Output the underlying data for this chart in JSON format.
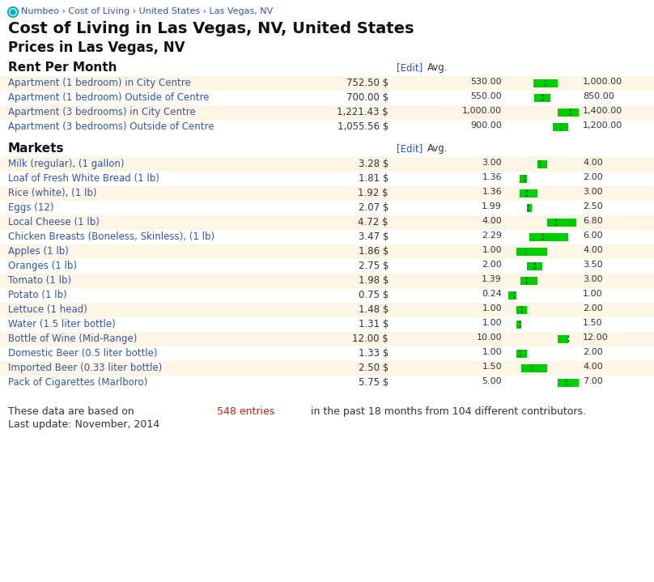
{
  "breadcrumb": "Numbeo › Cost of Living › United States › Las Vegas, NV",
  "title1": "Cost of Living in Las Vegas, NV, United States",
  "title2": "Prices in Las Vegas, NV",
  "bg_color": "#ffffff",
  "row_alt_color": "#fdf5e6",
  "row_white_color": "#ffffff",
  "text_color_blue": "#3355aa",
  "text_color_red": "#cc2200",
  "text_color_black": "#111111",
  "text_color_dark": "#333333",
  "bar_color": "#00cc00",
  "bar_dashed_color": "#005500",
  "edit_color": "#3355aa",
  "sections": [
    {
      "header": "Rent Per Month",
      "items": [
        {
          "name": "Apartment (1 bedroom) in City Centre",
          "avg": "752.50 $",
          "low": 530,
          "high": 1000,
          "low_str": "530.00",
          "high_str": "1,000.00",
          "bar_scale_max": 1400
        },
        {
          "name": "Apartment (1 bedroom) Outside of Centre",
          "avg": "700.00 $",
          "low": 550,
          "high": 850,
          "low_str": "550.00",
          "high_str": "850.00",
          "bar_scale_max": 1400
        },
        {
          "name": "Apartment (3 bedrooms) in City Centre",
          "avg": "1,221.43 $",
          "low": 1000,
          "high": 1400,
          "low_str": "1,000.00",
          "high_str": "1,400.00",
          "bar_scale_max": 1400
        },
        {
          "name": "Apartment (3 bedrooms) Outside of Centre",
          "avg": "1,055.56 $",
          "low": 900,
          "high": 1200,
          "low_str": "900.00",
          "high_str": "1,200.00",
          "bar_scale_max": 1400
        }
      ]
    },
    {
      "header": "Markets",
      "items": [
        {
          "name": "Milk (regular), (1 gallon)",
          "avg": "3.28 $",
          "low": 3.0,
          "high": 4.0,
          "low_str": "3.00",
          "high_str": "4.00",
          "bar_scale_max": 7
        },
        {
          "name": "Loaf of Fresh White Bread (1 lb)",
          "avg": "1.81 $",
          "low": 1.36,
          "high": 2.0,
          "low_str": "1.36",
          "high_str": "2.00",
          "bar_scale_max": 7
        },
        {
          "name": "Rice (white), (1 lb)",
          "avg": "1.92 $",
          "low": 1.36,
          "high": 3.0,
          "low_str": "1.36",
          "high_str": "3.00",
          "bar_scale_max": 7
        },
        {
          "name": "Eggs (12)",
          "avg": "2.07 $",
          "low": 1.99,
          "high": 2.5,
          "low_str": "1.99",
          "high_str": "2.50",
          "bar_scale_max": 7
        },
        {
          "name": "Local Cheese (1 lb)",
          "avg": "4.72 $",
          "low": 4.0,
          "high": 6.8,
          "low_str": "4.00",
          "high_str": "6.80",
          "bar_scale_max": 7
        },
        {
          "name": "Chicken Breasts (Boneless, Skinless), (1 lb)",
          "avg": "3.47 $",
          "low": 2.29,
          "high": 6.0,
          "low_str": "2.29",
          "high_str": "6.00",
          "bar_scale_max": 7
        },
        {
          "name": "Apples (1 lb)",
          "avg": "1.86 $",
          "low": 1.0,
          "high": 4.0,
          "low_str": "1.00",
          "high_str": "4.00",
          "bar_scale_max": 7
        },
        {
          "name": "Oranges (1 lb)",
          "avg": "2.75 $",
          "low": 2.0,
          "high": 3.5,
          "low_str": "2.00",
          "high_str": "3.50",
          "bar_scale_max": 7
        },
        {
          "name": "Tomato (1 lb)",
          "avg": "1.98 $",
          "low": 1.39,
          "high": 3.0,
          "low_str": "1.39",
          "high_str": "3.00",
          "bar_scale_max": 7
        },
        {
          "name": "Potato (1 lb)",
          "avg": "0.75 $",
          "low": 0.24,
          "high": 1.0,
          "low_str": "0.24",
          "high_str": "1.00",
          "bar_scale_max": 7
        },
        {
          "name": "Lettuce (1 head)",
          "avg": "1.48 $",
          "low": 1.0,
          "high": 2.0,
          "low_str": "1.00",
          "high_str": "2.00",
          "bar_scale_max": 7
        },
        {
          "name": "Water (1.5 liter bottle)",
          "avg": "1.31 $",
          "low": 1.0,
          "high": 1.5,
          "low_str": "1.00",
          "high_str": "1.50",
          "bar_scale_max": 7
        },
        {
          "name": "Bottle of Wine (Mid-Range)",
          "avg": "12.00 $",
          "low": 10.0,
          "high": 12.0,
          "low_str": "10.00",
          "high_str": "12.00",
          "bar_scale_max": 14
        },
        {
          "name": "Domestic Beer (0.5 liter bottle)",
          "avg": "1.33 $",
          "low": 1.0,
          "high": 2.0,
          "low_str": "1.00",
          "high_str": "2.00",
          "bar_scale_max": 7
        },
        {
          "name": "Imported Beer (0.33 liter bottle)",
          "avg": "2.50 $",
          "low": 1.5,
          "high": 4.0,
          "low_str": "1.50",
          "high_str": "4.00",
          "bar_scale_max": 7
        },
        {
          "name": "Pack of Cigarettes (Marlboro)",
          "avg": "5.75 $",
          "low": 5.0,
          "high": 7.0,
          "low_str": "5.00",
          "high_str": "7.00",
          "bar_scale_max": 7
        }
      ]
    }
  ],
  "footer1_pre": "These data are based on ",
  "footer1_highlight": "548 entries",
  "footer1_post": " in the past 18 months from 104 different contributors.",
  "footer2": "Last update: November, 2014",
  "fig_w": 8.08,
  "fig_h": 7.19,
  "dpi": 100
}
